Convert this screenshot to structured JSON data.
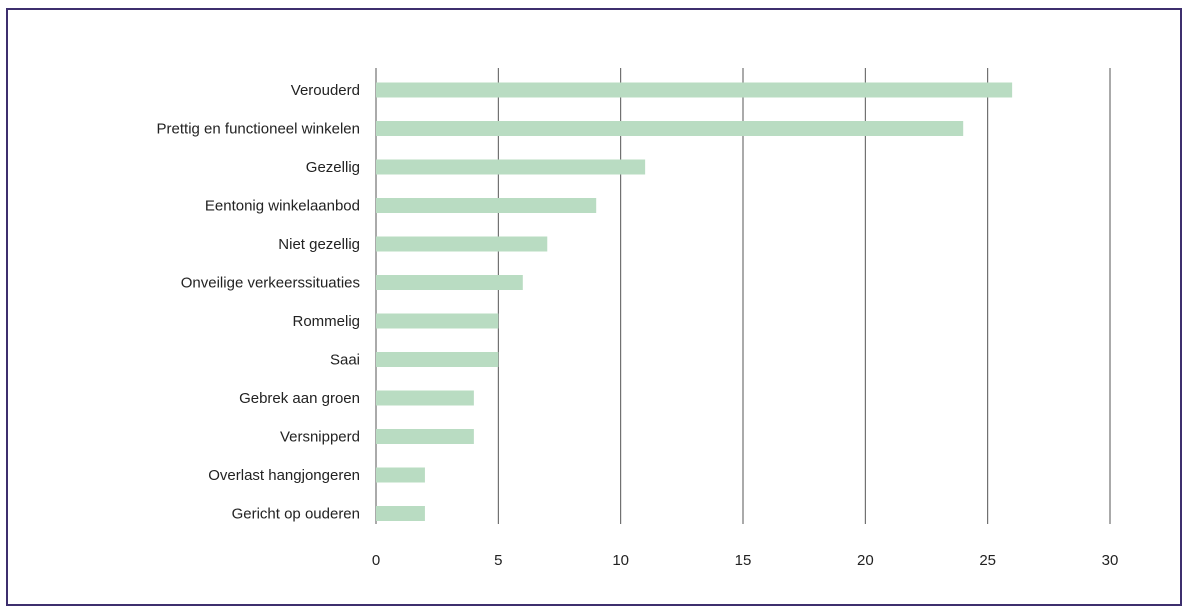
{
  "chart_data": {
    "type": "bar",
    "orientation": "horizontal",
    "categories": [
      "Verouderd",
      "Prettig en functioneel winkelen",
      "Gezellig",
      "Eentonig winkelaanbod",
      "Niet gezellig",
      "Onveilige verkeerssituaties",
      "Rommelig",
      "Saai",
      "Gebrek aan groen",
      "Versnipperd",
      "Overlast hangjongeren",
      "Gericht op ouderen"
    ],
    "values": [
      26,
      24,
      11,
      9,
      7,
      6,
      5,
      5,
      4,
      4,
      2,
      2
    ],
    "xlim": [
      0,
      30
    ],
    "xticks": [
      "0",
      "5",
      "10",
      "15",
      "20",
      "25",
      "30"
    ],
    "grid": "vertical",
    "bar_color": "#b9dcc2",
    "title": "",
    "xlabel": "",
    "ylabel": ""
  }
}
